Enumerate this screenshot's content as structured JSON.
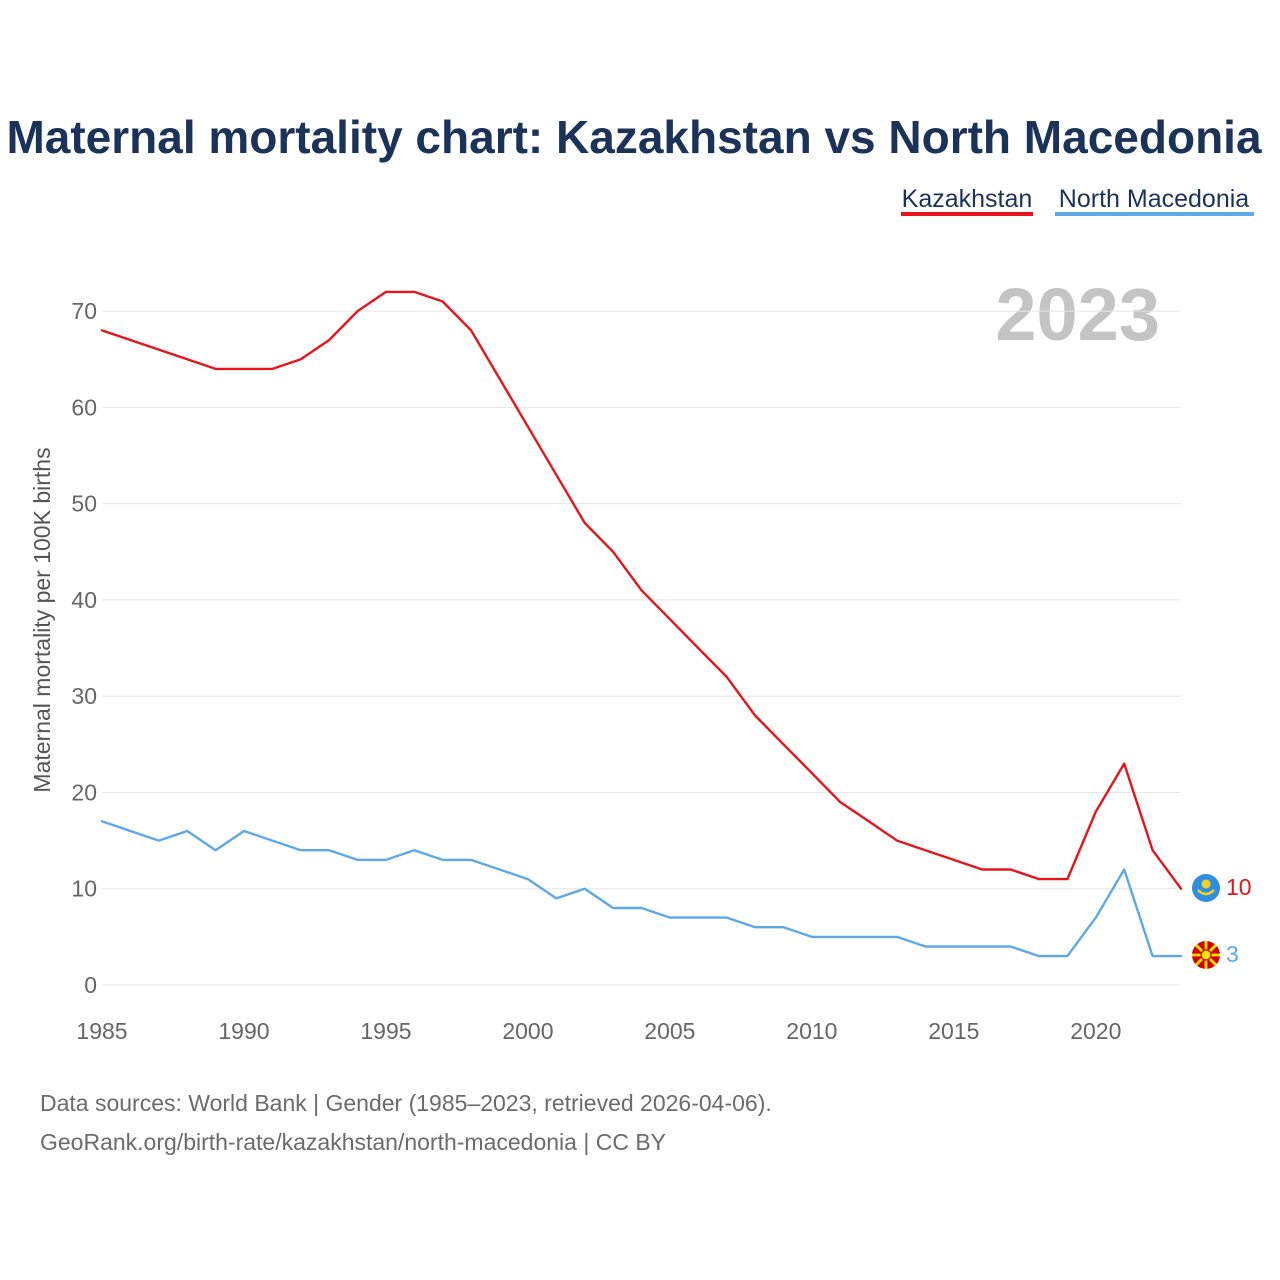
{
  "chart_data": {
    "type": "line",
    "title": "Maternal mortality chart: Kazakhstan vs North Macedonia",
    "ylabel": "Maternal mortality per 100K births",
    "xlabel": "",
    "current_year": "2023",
    "xlim": [
      1985,
      2023
    ],
    "ylim": [
      0,
      75
    ],
    "x_ticks": [
      1985,
      1990,
      1995,
      2000,
      2005,
      2010,
      2015,
      2020
    ],
    "y_ticks": [
      0,
      10,
      20,
      30,
      40,
      50,
      60,
      70
    ],
    "grid": true,
    "legend_position": "top-right",
    "x": [
      1985,
      1986,
      1987,
      1988,
      1989,
      1990,
      1991,
      1992,
      1993,
      1994,
      1995,
      1996,
      1997,
      1998,
      1999,
      2000,
      2001,
      2002,
      2003,
      2004,
      2005,
      2006,
      2007,
      2008,
      2009,
      2010,
      2011,
      2012,
      2013,
      2014,
      2015,
      2016,
      2017,
      2018,
      2019,
      2020,
      2021,
      2022,
      2023
    ],
    "series": [
      {
        "name": "Kazakhstan",
        "color": "#e8141c",
        "end_label": "10",
        "flag": "kazakhstan-flag",
        "values": [
          68,
          67,
          66,
          65,
          64,
          64,
          64,
          65,
          67,
          70,
          72,
          72,
          71,
          68,
          63,
          58,
          53,
          48,
          45,
          41,
          38,
          35,
          32,
          28,
          25,
          22,
          19,
          17,
          15,
          14,
          13,
          12,
          12,
          11,
          11,
          18,
          23,
          14,
          10
        ]
      },
      {
        "name": "North Macedonia",
        "color": "#5ea8e8",
        "end_label": "3",
        "flag": "north-macedonia-flag",
        "values": [
          17,
          16,
          15,
          16,
          14,
          16,
          15,
          14,
          14,
          13,
          13,
          14,
          13,
          13,
          12,
          11,
          9,
          10,
          8,
          8,
          7,
          7,
          7,
          6,
          6,
          5,
          5,
          5,
          5,
          4,
          4,
          4,
          4,
          3,
          3,
          7,
          12,
          3,
          3
        ]
      }
    ]
  },
  "source": {
    "line1": "Data sources: World Bank | Gender (1985–2023, retrieved 2026-04-06).",
    "line2": "GeoRank.org/birth-rate/kazakhstan/north-macedonia | CC BY"
  },
  "colors": {
    "title": "#1b3358",
    "grid": "#e6e6e6",
    "kazakhstan_flag": "#2f8ee0",
    "kazakhstan_sun": "#f5d11a",
    "macedonia_red": "#d20000",
    "macedonia_yellow": "#ffe600"
  }
}
